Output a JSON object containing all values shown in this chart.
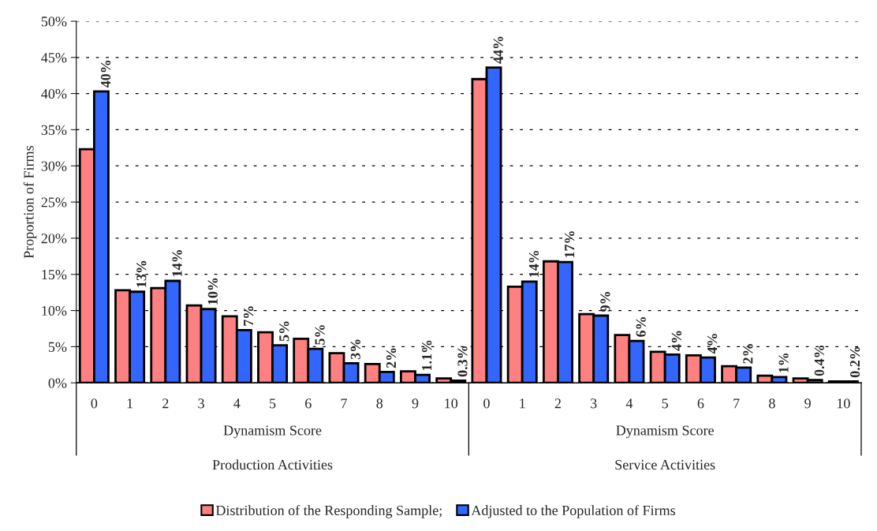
{
  "chart_data": {
    "type": "bar",
    "ylabel": "Proportion of Firms",
    "categories": [
      "0",
      "1",
      "2",
      "3",
      "4",
      "5",
      "6",
      "7",
      "8",
      "9",
      "10",
      "0",
      "1",
      "2",
      "3",
      "4",
      "5",
      "6",
      "7",
      "8",
      "9",
      "10"
    ],
    "series": [
      {
        "name": "Distribution of the Responding Sample;",
        "color": "#ff8080",
        "values": [
          32.3,
          12.8,
          13.1,
          10.7,
          9.2,
          7.0,
          6.1,
          4.1,
          2.6,
          1.6,
          0.6,
          42.0,
          13.3,
          16.8,
          9.5,
          6.6,
          4.3,
          3.8,
          2.3,
          1.0,
          0.6,
          0.2
        ]
      },
      {
        "name": "Adjusted to the Population of Firms",
        "color": "#3366ff",
        "values": [
          40.3,
          12.6,
          14.1,
          10.2,
          7.3,
          5.2,
          4.7,
          2.7,
          1.5,
          1.1,
          0.3,
          43.6,
          14.0,
          16.7,
          9.3,
          5.8,
          3.9,
          3.5,
          2.1,
          0.8,
          0.4,
          0.2
        ],
        "value_labels": [
          "40%",
          "13%",
          "14%",
          "10%",
          "7%",
          "5%",
          "5%",
          "3%",
          "2%",
          "1.1%",
          "0.3%",
          "44%",
          "14%",
          "17%",
          "9%",
          "6%",
          "4%",
          "4%",
          "2%",
          "1%",
          "0.4%",
          "0.2%"
        ]
      }
    ],
    "ylim": [
      0,
      50
    ],
    "yticks": [
      {
        "value": 0,
        "label": "0%"
      },
      {
        "value": 5,
        "label": "5%"
      },
      {
        "value": 10,
        "label": "10%"
      },
      {
        "value": 15,
        "label": "15%"
      },
      {
        "value": 20,
        "label": "20%"
      },
      {
        "value": 25,
        "label": "25%"
      },
      {
        "value": 30,
        "label": "30%"
      },
      {
        "value": 35,
        "label": "35%"
      },
      {
        "value": 40,
        "label": "40%"
      },
      {
        "value": 45,
        "label": "45%"
      },
      {
        "value": 50,
        "label": "50%"
      }
    ],
    "grid": "y",
    "legend": "bottom",
    "annotations": [
      "Dynamism Score",
      "Dynamism Score",
      "Production Activities",
      "Service Activities"
    ]
  }
}
